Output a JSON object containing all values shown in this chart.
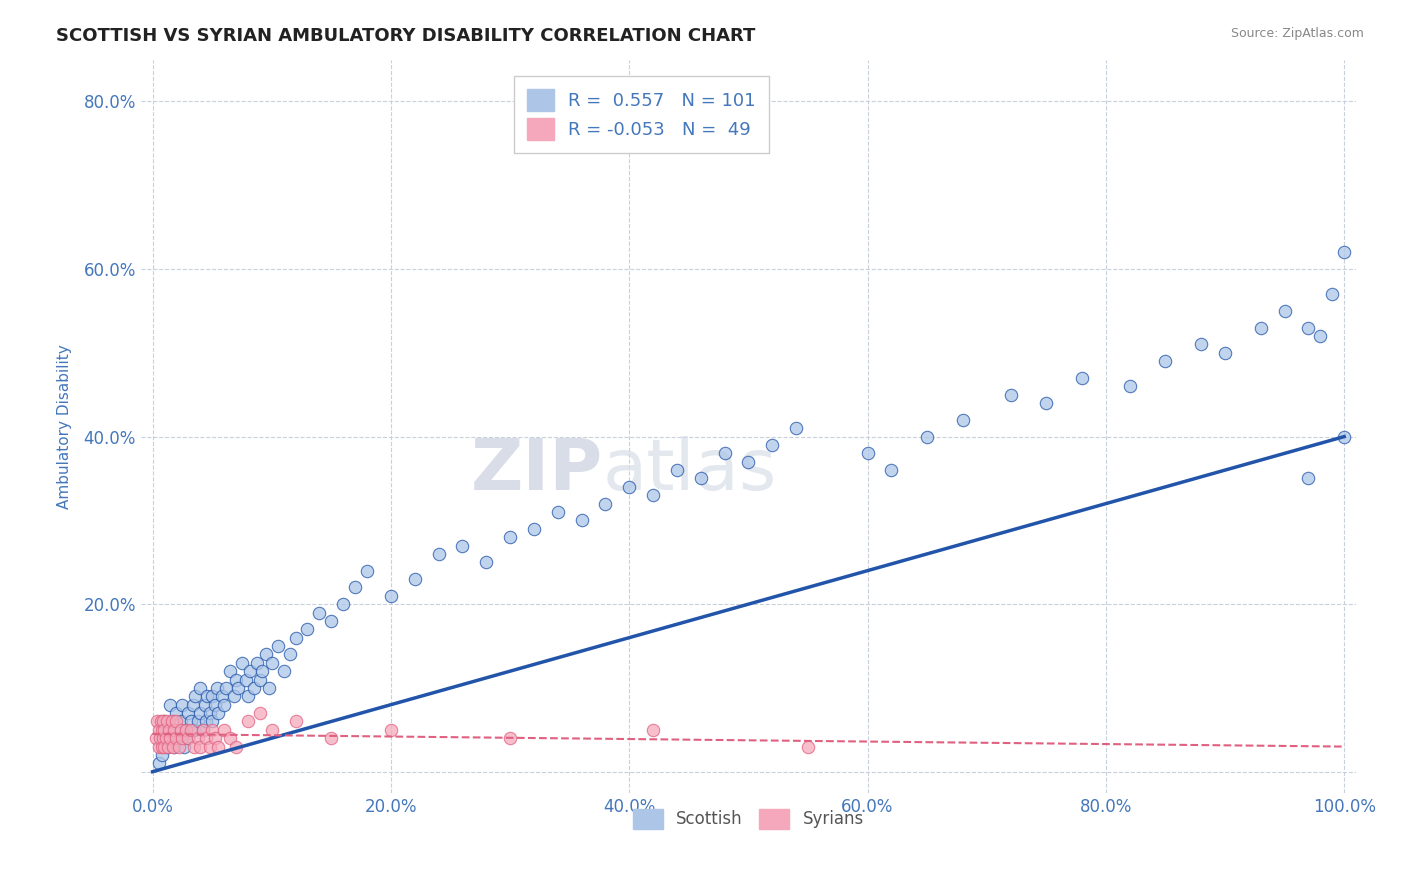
{
  "title": "SCOTTISH VS SYRIAN AMBULATORY DISABILITY CORRELATION CHART",
  "source": "Source: ZipAtlas.com",
  "xlabel": "",
  "ylabel": "Ambulatory Disability",
  "xlim": [
    -0.01,
    1.01
  ],
  "ylim": [
    -0.025,
    0.85
  ],
  "yticks": [
    0.0,
    0.2,
    0.4,
    0.6,
    0.8
  ],
  "ytick_labels": [
    "",
    "20.0%",
    "40.0%",
    "60.0%",
    "80.0%"
  ],
  "xticks": [
    0.0,
    0.2,
    0.4,
    0.6,
    0.8,
    1.0
  ],
  "xtick_labels": [
    "0.0%",
    "20.0%",
    "40.0%",
    "60.0%",
    "80.0%",
    "100.0%"
  ],
  "legend_labels": [
    "Scottish",
    "Syrians"
  ],
  "r_scottish": 0.557,
  "n_scottish": 101,
  "r_syrian": -0.053,
  "n_syrian": 49,
  "scatter_color_scottish": "#adc6e8",
  "scatter_color_syrian": "#f5a8bb",
  "line_color_scottish": "#2255aa",
  "line_color_syrian": "#e06080",
  "background_color": "#ffffff",
  "grid_color": "#c8d0dc",
  "title_color": "#222222",
  "tick_label_color": "#4477bb",
  "watermark_color": "#d8dde8",
  "scottish_x": [
    0.005,
    0.008,
    0.01,
    0.01,
    0.012,
    0.013,
    0.015,
    0.016,
    0.017,
    0.018,
    0.02,
    0.02,
    0.022,
    0.024,
    0.025,
    0.026,
    0.028,
    0.03,
    0.03,
    0.032,
    0.034,
    0.035,
    0.036,
    0.038,
    0.04,
    0.04,
    0.042,
    0.044,
    0.045,
    0.046,
    0.048,
    0.05,
    0.05,
    0.052,
    0.054,
    0.055,
    0.058,
    0.06,
    0.062,
    0.065,
    0.068,
    0.07,
    0.072,
    0.075,
    0.078,
    0.08,
    0.082,
    0.085,
    0.088,
    0.09,
    0.092,
    0.095,
    0.098,
    0.1,
    0.105,
    0.11,
    0.115,
    0.12,
    0.13,
    0.14,
    0.15,
    0.16,
    0.17,
    0.18,
    0.2,
    0.22,
    0.24,
    0.26,
    0.28,
    0.3,
    0.32,
    0.34,
    0.36,
    0.38,
    0.4,
    0.42,
    0.44,
    0.46,
    0.48,
    0.5,
    0.52,
    0.54,
    0.6,
    0.62,
    0.65,
    0.68,
    0.72,
    0.75,
    0.78,
    0.82,
    0.85,
    0.88,
    0.9,
    0.93,
    0.95,
    0.97,
    0.97,
    0.98,
    0.99,
    1.0,
    1.0
  ],
  "scottish_y": [
    0.01,
    0.02,
    0.04,
    0.06,
    0.03,
    0.05,
    0.08,
    0.04,
    0.06,
    0.03,
    0.05,
    0.07,
    0.04,
    0.06,
    0.08,
    0.03,
    0.05,
    0.04,
    0.07,
    0.06,
    0.08,
    0.05,
    0.09,
    0.06,
    0.07,
    0.1,
    0.05,
    0.08,
    0.06,
    0.09,
    0.07,
    0.06,
    0.09,
    0.08,
    0.1,
    0.07,
    0.09,
    0.08,
    0.1,
    0.12,
    0.09,
    0.11,
    0.1,
    0.13,
    0.11,
    0.09,
    0.12,
    0.1,
    0.13,
    0.11,
    0.12,
    0.14,
    0.1,
    0.13,
    0.15,
    0.12,
    0.14,
    0.16,
    0.17,
    0.19,
    0.18,
    0.2,
    0.22,
    0.24,
    0.21,
    0.23,
    0.26,
    0.27,
    0.25,
    0.28,
    0.29,
    0.31,
    0.3,
    0.32,
    0.34,
    0.33,
    0.36,
    0.35,
    0.38,
    0.37,
    0.39,
    0.41,
    0.38,
    0.36,
    0.4,
    0.42,
    0.45,
    0.44,
    0.47,
    0.46,
    0.49,
    0.51,
    0.5,
    0.53,
    0.55,
    0.53,
    0.35,
    0.52,
    0.57,
    0.62,
    0.4
  ],
  "syrian_x": [
    0.003,
    0.004,
    0.005,
    0.005,
    0.006,
    0.007,
    0.008,
    0.008,
    0.009,
    0.009,
    0.01,
    0.01,
    0.011,
    0.012,
    0.013,
    0.014,
    0.015,
    0.016,
    0.017,
    0.018,
    0.02,
    0.02,
    0.022,
    0.024,
    0.025,
    0.028,
    0.03,
    0.032,
    0.035,
    0.038,
    0.04,
    0.042,
    0.045,
    0.048,
    0.05,
    0.052,
    0.055,
    0.06,
    0.065,
    0.07,
    0.08,
    0.09,
    0.1,
    0.12,
    0.15,
    0.2,
    0.3,
    0.42,
    0.55
  ],
  "syrian_y": [
    0.04,
    0.06,
    0.03,
    0.05,
    0.04,
    0.06,
    0.03,
    0.05,
    0.04,
    0.06,
    0.03,
    0.05,
    0.04,
    0.06,
    0.03,
    0.05,
    0.04,
    0.06,
    0.03,
    0.05,
    0.04,
    0.06,
    0.03,
    0.05,
    0.04,
    0.05,
    0.04,
    0.05,
    0.03,
    0.04,
    0.03,
    0.05,
    0.04,
    0.03,
    0.05,
    0.04,
    0.03,
    0.05,
    0.04,
    0.03,
    0.06,
    0.07,
    0.05,
    0.06,
    0.04,
    0.05,
    0.04,
    0.05,
    0.03
  ],
  "line_sc_x0": 0.0,
  "line_sc_y0": 0.0,
  "line_sc_x1": 1.0,
  "line_sc_y1": 0.4,
  "line_sy_x0": 0.0,
  "line_sy_y0": 0.045,
  "line_sy_x1": 1.0,
  "line_sy_y1": 0.03
}
